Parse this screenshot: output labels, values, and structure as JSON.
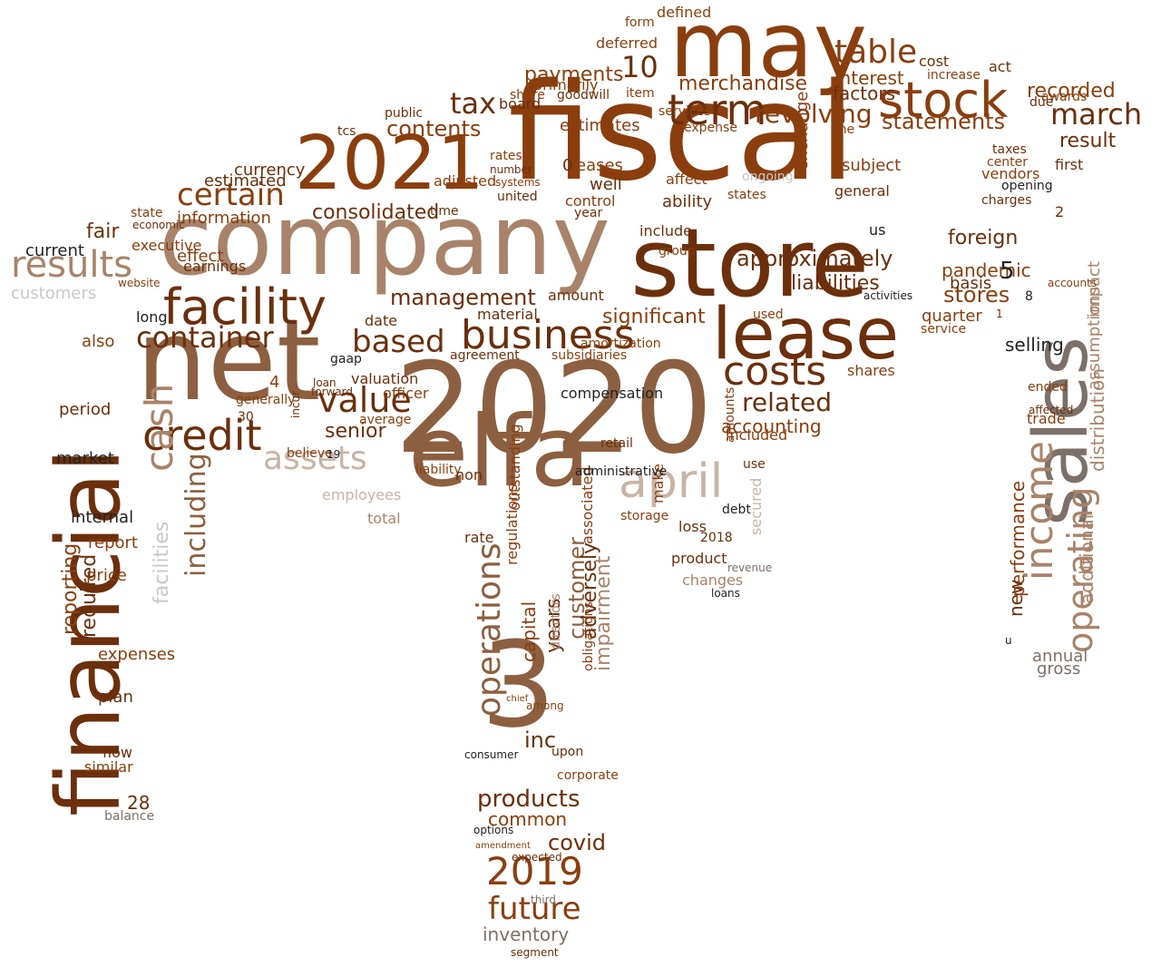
{
  "palette": {
    "dark_brown": "#6b2f0c",
    "rust": "#8a3e0e",
    "tan": "#a8836a",
    "mid_brown": "#8c5f40",
    "light_tan": "#c8b4a6",
    "gray": "#7c7068",
    "light_gray": "#c8c8c8",
    "black": "#222222"
  },
  "words": [
    {
      "text": "fiscal",
      "color": "#8a3e0e",
      "vertical": false
    },
    {
      "text": "company",
      "color": "#a8836a",
      "vertical": false
    },
    {
      "text": "2020",
      "color": "#8c5f40",
      "vertical": false
    },
    {
      "text": "net",
      "color": "#8c5f40",
      "vertical": false
    },
    {
      "text": "sales",
      "color": "#7c7068",
      "vertical": true
    },
    {
      "text": "financial",
      "color": "#6b2f0c",
      "vertical": true
    },
    {
      "text": "store",
      "color": "#6b2f0c",
      "vertical": false
    },
    {
      "text": "may",
      "color": "#8a3e0e",
      "vertical": false
    },
    {
      "text": "elfa",
      "color": "#8c5f40",
      "vertical": false
    },
    {
      "text": "3",
      "color": "#8c5f40",
      "vertical": false
    },
    {
      "text": "lease",
      "color": "#6b2f0c",
      "vertical": false
    },
    {
      "text": "2021",
      "color": "#8a3e0e",
      "vertical": false
    },
    {
      "text": "stock",
      "color": "#8a3e0e",
      "vertical": false
    },
    {
      "text": "facility",
      "color": "#6b2f0c",
      "vertical": false
    },
    {
      "text": "business",
      "color": "#6b2f0c",
      "vertical": false
    },
    {
      "text": "credit",
      "color": "#6b2f0c",
      "vertical": false
    },
    {
      "text": "costs",
      "color": "#6b2f0c",
      "vertical": false
    },
    {
      "text": "operations",
      "color": "#8c5f40",
      "vertical": true
    },
    {
      "text": "income",
      "color": "#a8836a",
      "vertical": true
    },
    {
      "text": "operating",
      "color": "#a8836a",
      "vertical": true
    },
    {
      "text": "april",
      "color": "#c8b4a6",
      "vertical": false
    },
    {
      "text": "2019",
      "color": "#8a3e0e",
      "vertical": false
    },
    {
      "text": "cash",
      "color": "#a8836a",
      "vertical": true
    },
    {
      "text": "term",
      "color": "#6b2f0c",
      "vertical": false
    },
    {
      "text": "results",
      "color": "#a8836a",
      "vertical": false
    },
    {
      "text": "container",
      "color": "#6b2f0c",
      "vertical": false
    },
    {
      "text": "assets",
      "color": "#c8b4a6",
      "vertical": false
    },
    {
      "text": "based",
      "color": "#6b2f0c",
      "vertical": false
    },
    {
      "text": "value",
      "color": "#6b2f0c",
      "vertical": false
    },
    {
      "text": "certain",
      "color": "#8a3e0e",
      "vertical": false
    },
    {
      "text": "including",
      "color": "#8c5f40",
      "vertical": true
    },
    {
      "text": "table",
      "color": "#8a3e0e",
      "vertical": false
    },
    {
      "text": "march",
      "color": "#6b2f0c",
      "vertical": false
    },
    {
      "text": "revolving",
      "color": "#8a3e0e",
      "vertical": false
    },
    {
      "text": "tax",
      "color": "#6b2f0c",
      "vertical": false
    },
    {
      "text": "10",
      "color": "#6b2f0c",
      "vertical": false
    },
    {
      "text": "consolidated",
      "color": "#6b2f0c",
      "vertical": false
    },
    {
      "text": "future",
      "color": "#8a3e0e",
      "vertical": false
    },
    {
      "text": "products",
      "color": "#6b2f0c",
      "vertical": false
    },
    {
      "text": "related",
      "color": "#6b2f0c",
      "vertical": false
    },
    {
      "text": "senior",
      "color": "#6b2f0c",
      "vertical": false
    },
    {
      "text": "management",
      "color": "#6b2f0c",
      "vertical": false
    },
    {
      "text": "statements",
      "color": "#8a3e0e",
      "vertical": false
    },
    {
      "text": "recorded",
      "color": "#8a3e0e",
      "vertical": false
    },
    {
      "text": "result",
      "color": "#6b2f0c",
      "vertical": false
    },
    {
      "text": "contents",
      "color": "#8a3e0e",
      "vertical": false
    },
    {
      "text": "payments",
      "color": "#8a3e0e",
      "vertical": false
    },
    {
      "text": "merchandise",
      "color": "#8a3e0e",
      "vertical": false
    },
    {
      "text": "interest",
      "color": "#8a3e0e",
      "vertical": false
    },
    {
      "text": "factors",
      "color": "#6b2f0c",
      "vertical": false
    },
    {
      "text": "liabilities",
      "color": "#6b2f0c",
      "vertical": false
    },
    {
      "text": "approximately",
      "color": "#6b2f0c",
      "vertical": false
    },
    {
      "text": "foreign",
      "color": "#6b2f0c",
      "vertical": false
    },
    {
      "text": "stores",
      "color": "#8a3e0e",
      "vertical": false
    },
    {
      "text": "pandemic",
      "color": "#8a3e0e",
      "vertical": false
    },
    {
      "text": "quarter",
      "color": "#8a3e0e",
      "vertical": false
    },
    {
      "text": "significant",
      "color": "#8a3e0e",
      "vertical": false
    },
    {
      "text": "accounting",
      "color": "#8a3e0e",
      "vertical": false
    },
    {
      "text": "included",
      "color": "#8a3e0e",
      "vertical": false
    },
    {
      "text": "common",
      "color": "#8a3e0e",
      "vertical": false
    },
    {
      "text": "covid",
      "color": "#6b2f0c",
      "vertical": false
    },
    {
      "text": "inc",
      "color": "#6b2f0c",
      "vertical": false
    },
    {
      "text": "customer",
      "color": "#8c5f40",
      "vertical": true
    },
    {
      "text": "adversely",
      "color": "#6b2f0c",
      "vertical": true
    },
    {
      "text": "years",
      "color": "#6b2f0c",
      "vertical": true
    },
    {
      "text": "capital",
      "color": "#8a3e0e",
      "vertical": true
    },
    {
      "text": "impairment",
      "color": "#a8836a",
      "vertical": true
    },
    {
      "text": "inventory",
      "color": "#7c7068",
      "vertical": false
    },
    {
      "text": "performance",
      "color": "#8a3e0e",
      "vertical": true
    },
    {
      "text": "additional",
      "color": "#a8836a",
      "vertical": true
    },
    {
      "text": "distribution",
      "color": "#a8836a",
      "vertical": true
    },
    {
      "text": "assumptions",
      "color": "#a8836a",
      "vertical": true
    },
    {
      "text": "impact",
      "color": "#a8836a",
      "vertical": true
    },
    {
      "text": "new",
      "color": "#6b2f0c",
      "vertical": true
    },
    {
      "text": "selling",
      "color": "#222222",
      "vertical": false
    },
    {
      "text": "annual",
      "color": "#7c7068",
      "vertical": false
    },
    {
      "text": "gross",
      "color": "#7c7068",
      "vertical": false
    },
    {
      "text": "facilities",
      "color": "#c8c8c8",
      "vertical": true
    },
    {
      "text": "reporting",
      "color": "#8a3e0e",
      "vertical": true
    },
    {
      "text": "required",
      "color": "#6b2f0c",
      "vertical": true
    },
    {
      "text": "customers",
      "color": "#c8c8c8",
      "vertical": false
    },
    {
      "text": "information",
      "color": "#8a3e0e",
      "vertical": false
    },
    {
      "text": "currency",
      "color": "#6b2f0c",
      "vertical": false
    },
    {
      "text": "estimated",
      "color": "#6b2f0c",
      "vertical": false
    },
    {
      "text": "fair",
      "color": "#6b2f0c",
      "vertical": false
    },
    {
      "text": "current",
      "color": "#222222",
      "vertical": false
    },
    {
      "text": "executive",
      "color": "#8a3e0e",
      "vertical": false
    },
    {
      "text": "effect",
      "color": "#8a3e0e",
      "vertical": false
    },
    {
      "text": "earnings",
      "color": "#6b2f0c",
      "vertical": false
    },
    {
      "text": "long",
      "color": "#222222",
      "vertical": false
    },
    {
      "text": "also",
      "color": "#8a3e0e",
      "vertical": false
    },
    {
      "text": "period",
      "color": "#6b2f0c",
      "vertical": false
    },
    {
      "text": "market",
      "color": "#222222",
      "vertical": false
    },
    {
      "text": "internal",
      "color": "#222222",
      "vertical": false
    },
    {
      "text": "report",
      "color": "#8a3e0e",
      "vertical": false
    },
    {
      "text": "price",
      "color": "#8a3e0e",
      "vertical": false
    },
    {
      "text": "expenses",
      "color": "#8a3e0e",
      "vertical": false
    },
    {
      "text": "plan",
      "color": "#6b2f0c",
      "vertical": false
    },
    {
      "text": "flow",
      "color": "#6b2f0c",
      "vertical": false
    },
    {
      "text": "similar",
      "color": "#8a3e0e",
      "vertical": false
    },
    {
      "text": "28",
      "color": "#6b2f0c",
      "vertical": false
    },
    {
      "text": "balance",
      "color": "#7c7068",
      "vertical": false
    },
    {
      "text": "employees",
      "color": "#c8b4a6",
      "vertical": false
    },
    {
      "text": "total",
      "color": "#a8836a",
      "vertical": false
    },
    {
      "text": "rate",
      "color": "#6b2f0c",
      "vertical": false
    },
    {
      "text": "outstanding",
      "color": "#8a3e0e",
      "vertical": true
    },
    {
      "text": "regulations",
      "color": "#8a3e0e",
      "vertical": true
    },
    {
      "text": "associated",
      "color": "#8a3e0e",
      "vertical": true
    },
    {
      "text": "make",
      "color": "#8a3e0e",
      "vertical": true
    },
    {
      "text": "retail",
      "color": "#6b2f0c",
      "vertical": false
    },
    {
      "text": "administrative",
      "color": "#222222",
      "vertical": false
    },
    {
      "text": "storage",
      "color": "#8a3e0e",
      "vertical": false
    },
    {
      "text": "loss",
      "color": "#6b2f0c",
      "vertical": false
    },
    {
      "text": "debt",
      "color": "#222222",
      "vertical": false
    },
    {
      "text": "2018",
      "color": "#6b2f0c",
      "vertical": false
    },
    {
      "text": "product",
      "color": "#6b2f0c",
      "vertical": false
    },
    {
      "text": "changes",
      "color": "#a8836a",
      "vertical": false
    },
    {
      "text": "secured",
      "color": "#c8b4a6",
      "vertical": true
    },
    {
      "text": "basis",
      "color": "#6b2f0c",
      "vertical": false
    },
    {
      "text": "service",
      "color": "#8a3e0e",
      "vertical": false
    },
    {
      "text": "shares",
      "color": "#8a3e0e",
      "vertical": false
    },
    {
      "text": "ended",
      "color": "#8a3e0e",
      "vertical": false
    },
    {
      "text": "trade",
      "color": "#8a3e0e",
      "vertical": false
    },
    {
      "text": "subject",
      "color": "#8a3e0e",
      "vertical": false
    },
    {
      "text": "general",
      "color": "#6b2f0c",
      "vertical": false
    },
    {
      "text": "us",
      "color": "#222222",
      "vertical": false
    },
    {
      "text": "exchange",
      "color": "#8a3e0e",
      "vertical": true
    },
    {
      "text": "first",
      "color": "#6b2f0c",
      "vertical": false
    },
    {
      "text": "center",
      "color": "#8a3e0e",
      "vertical": false
    },
    {
      "text": "charges",
      "color": "#6b2f0c",
      "vertical": false
    },
    {
      "text": "opening",
      "color": "#222222",
      "vertical": false
    },
    {
      "text": "vendors",
      "color": "#8a3e0e",
      "vertical": false
    },
    {
      "text": "taxes",
      "color": "#6b2f0c",
      "vertical": false
    },
    {
      "text": "awards",
      "color": "#8a3e0e",
      "vertical": false
    },
    {
      "text": "cost",
      "color": "#6b2f0c",
      "vertical": false
    },
    {
      "text": "increase",
      "color": "#8a3e0e",
      "vertical": false
    },
    {
      "text": "act",
      "color": "#6b2f0c",
      "vertical": false
    },
    {
      "text": "due",
      "color": "#6b2f0c",
      "vertical": false
    },
    {
      "text": "deferred",
      "color": "#8a3e0e",
      "vertical": false
    },
    {
      "text": "defined",
      "color": "#8a3e0e",
      "vertical": false
    },
    {
      "text": "form",
      "color": "#8a3e0e",
      "vertical": false
    },
    {
      "text": "primarily",
      "color": "#8a3e0e",
      "vertical": false
    },
    {
      "text": "item",
      "color": "#8a3e0e",
      "vertical": false
    },
    {
      "text": "estimates",
      "color": "#8a3e0e",
      "vertical": false
    },
    {
      "text": "leases",
      "color": "#8a3e0e",
      "vertical": false
    },
    {
      "text": "control",
      "color": "#8a3e0e",
      "vertical": false
    },
    {
      "text": "year",
      "color": "#6b2f0c",
      "vertical": false
    },
    {
      "text": "well",
      "color": "#6b2f0c",
      "vertical": false
    },
    {
      "text": "adjusted",
      "color": "#8a3e0e",
      "vertical": false
    },
    {
      "text": "time",
      "color": "#6b2f0c",
      "vertical": false
    },
    {
      "text": "ability",
      "color": "#6b2f0c",
      "vertical": false
    },
    {
      "text": "affect",
      "color": "#8a3e0e",
      "vertical": false
    },
    {
      "text": "expense",
      "color": "#8a3e0e",
      "vertical": false
    },
    {
      "text": "include",
      "color": "#6b2f0c",
      "vertical": false
    },
    {
      "text": "group",
      "color": "#8a3e0e",
      "vertical": false
    },
    {
      "text": "amount",
      "color": "#6b2f0c",
      "vertical": false
    },
    {
      "text": "material",
      "color": "#6b2f0c",
      "vertical": false
    },
    {
      "text": "date",
      "color": "#6b2f0c",
      "vertical": false
    },
    {
      "text": "tcs",
      "color": "#6b2f0c",
      "vertical": false
    },
    {
      "text": "board",
      "color": "#6b2f0c",
      "vertical": false
    },
    {
      "text": "united",
      "color": "#6b2f0c",
      "vertical": false
    },
    {
      "text": "systems",
      "color": "#8a3e0e",
      "vertical": false
    },
    {
      "text": "number",
      "color": "#6b2f0c",
      "vertical": false
    },
    {
      "text": "rates",
      "color": "#8a3e0e",
      "vertical": false
    },
    {
      "text": "share",
      "color": "#8a3e0e",
      "vertical": false
    },
    {
      "text": "goodwill",
      "color": "#6b2f0c",
      "vertical": false
    },
    {
      "text": "services",
      "color": "#8a3e0e",
      "vertical": false
    },
    {
      "text": "public",
      "color": "#6b2f0c",
      "vertical": false
    },
    {
      "text": "state",
      "color": "#8a3e0e",
      "vertical": false
    },
    {
      "text": "economic",
      "color": "#6b2f0c",
      "vertical": false
    },
    {
      "text": "website",
      "color": "#8a3e0e",
      "vertical": false
    },
    {
      "text": "subsidiaries",
      "color": "#8a3e0e",
      "vertical": false
    },
    {
      "text": "amortization",
      "color": "#8a3e0e",
      "vertical": false
    },
    {
      "text": "agreement",
      "color": "#6b2f0c",
      "vertical": false
    },
    {
      "text": "gaap",
      "color": "#222222",
      "vertical": false
    },
    {
      "text": "loan",
      "color": "#6b2f0c",
      "vertical": false
    },
    {
      "text": "valuation",
      "color": "#6b2f0c",
      "vertical": false
    },
    {
      "text": "forward",
      "color": "#6b2f0c",
      "vertical": false
    },
    {
      "text": "officer",
      "color": "#8a3e0e",
      "vertical": false
    },
    {
      "text": "average",
      "color": "#8a3e0e",
      "vertical": false
    },
    {
      "text": "liability",
      "color": "#8a3e0e",
      "vertical": false
    },
    {
      "text": "believe",
      "color": "#8a3e0e",
      "vertical": false
    },
    {
      "text": "generally",
      "color": "#8a3e0e",
      "vertical": false
    },
    {
      "text": "incur",
      "color": "#6b2f0c",
      "vertical": true
    },
    {
      "text": "19",
      "color": "#222222",
      "vertical": false
    },
    {
      "text": "4",
      "color": "#8a3e0e",
      "vertical": false
    },
    {
      "text": "30",
      "color": "#6b2f0c",
      "vertical": false
    },
    {
      "text": "non",
      "color": "#6b2f0c",
      "vertical": false
    },
    {
      "text": "compensation",
      "color": "#222222",
      "vertical": false
    },
    {
      "text": "options",
      "color": "#222222",
      "vertical": false
    },
    {
      "text": "amendment",
      "color": "#8a3e0e",
      "vertical": false
    },
    {
      "text": "expected",
      "color": "#6b2f0c",
      "vertical": false
    },
    {
      "text": "third",
      "color": "#7c7068",
      "vertical": false
    },
    {
      "text": "segment",
      "color": "#6b2f0c",
      "vertical": false
    },
    {
      "text": "upon",
      "color": "#6b2f0c",
      "vertical": false
    },
    {
      "text": "corporate",
      "color": "#8a3e0e",
      "vertical": false
    },
    {
      "text": "among",
      "color": "#8a3e0e",
      "vertical": false
    },
    {
      "text": "chief",
      "color": "#8a3e0e",
      "vertical": false
    },
    {
      "text": "directors",
      "color": "#a8836a",
      "vertical": true
    },
    {
      "text": "obligations",
      "color": "#8a3e0e",
      "vertical": true
    },
    {
      "text": "consumer",
      "color": "#222222",
      "vertical": false
    },
    {
      "text": "revenue",
      "color": "#7c7068",
      "vertical": false
    },
    {
      "text": "loans",
      "color": "#222222",
      "vertical": false
    },
    {
      "text": "activities",
      "color": "#222222",
      "vertical": false
    },
    {
      "text": "accounts",
      "color": "#8a3e0e",
      "vertical": false
    },
    {
      "text": "affected",
      "color": "#6b2f0c",
      "vertical": false
    },
    {
      "text": "u",
      "color": "#222222",
      "vertical": false
    },
    {
      "text": "use",
      "color": "#6b2f0c",
      "vertical": false
    },
    {
      "text": "amounts",
      "color": "#8a3e0e",
      "vertical": true
    },
    {
      "text": "used",
      "color": "#8a3e0e",
      "vertical": false
    },
    {
      "text": "one",
      "color": "#8a3e0e",
      "vertical": false
    },
    {
      "text": "states",
      "color": "#8a3e0e",
      "vertical": false
    },
    {
      "text": "ongoing",
      "color": "#c8c8c8",
      "vertical": false
    },
    {
      "text": "1",
      "color": "#6b2f0c",
      "vertical": false
    },
    {
      "text": "5",
      "color": "#222222",
      "vertical": false
    },
    {
      "text": "8",
      "color": "#222222",
      "vertical": false
    },
    {
      "text": "2",
      "color": "#6b2f0c",
      "vertical": false
    },
    {
      "text": "0",
      "color": "#6b2f0c",
      "vertical": false
    }
  ]
}
